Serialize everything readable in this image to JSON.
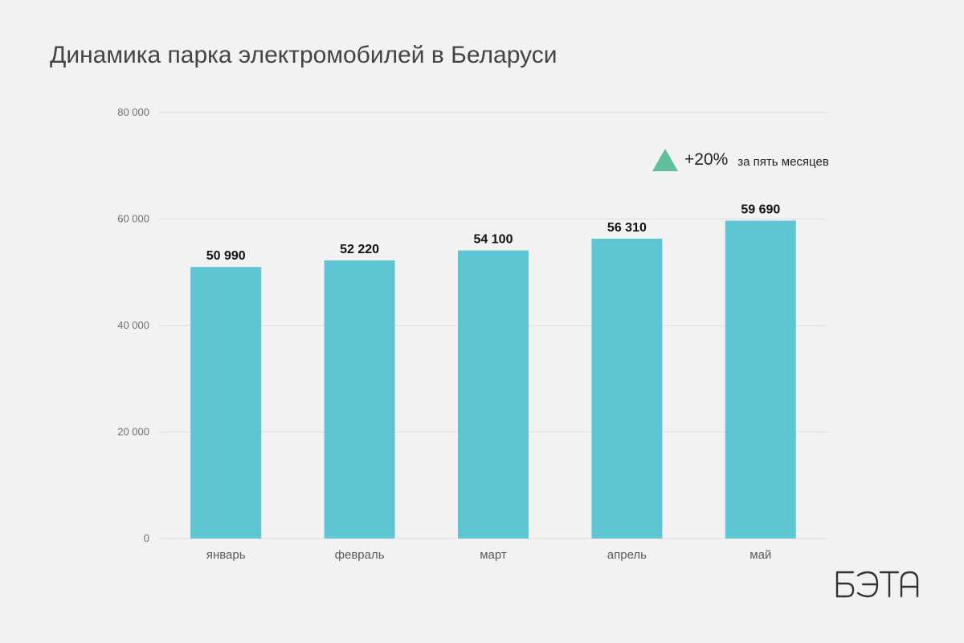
{
  "title": "Динамика парка электромобилей в Беларуси",
  "annotation": {
    "icon": "triangle-up-icon",
    "icon_color": "#5fbf9a",
    "change": "+20%",
    "text": "за пять месяцев"
  },
  "logo": {
    "text": "БЭТА"
  },
  "colors": {
    "bar": "#5ec6d3",
    "grid": "#dddddd",
    "background": "#f2f2f2"
  },
  "chart_data": {
    "type": "bar",
    "title": "Динамика парка электромобилей в Беларуси",
    "categories": [
      "январь",
      "февраль",
      "март",
      "апрель",
      "май"
    ],
    "values": [
      50990,
      52220,
      54100,
      56310,
      59690
    ],
    "value_labels": [
      "50 990",
      "52 220",
      "54 100",
      "56 310",
      "59 690"
    ],
    "yticks": [
      0,
      20000,
      40000,
      60000,
      80000
    ],
    "ytick_labels": [
      "0",
      "20 000",
      "40 000",
      "60 000",
      "80 000"
    ],
    "ylim": [
      0,
      80000
    ],
    "xlabel": "",
    "ylabel": "",
    "grid": true,
    "legend": "none"
  }
}
